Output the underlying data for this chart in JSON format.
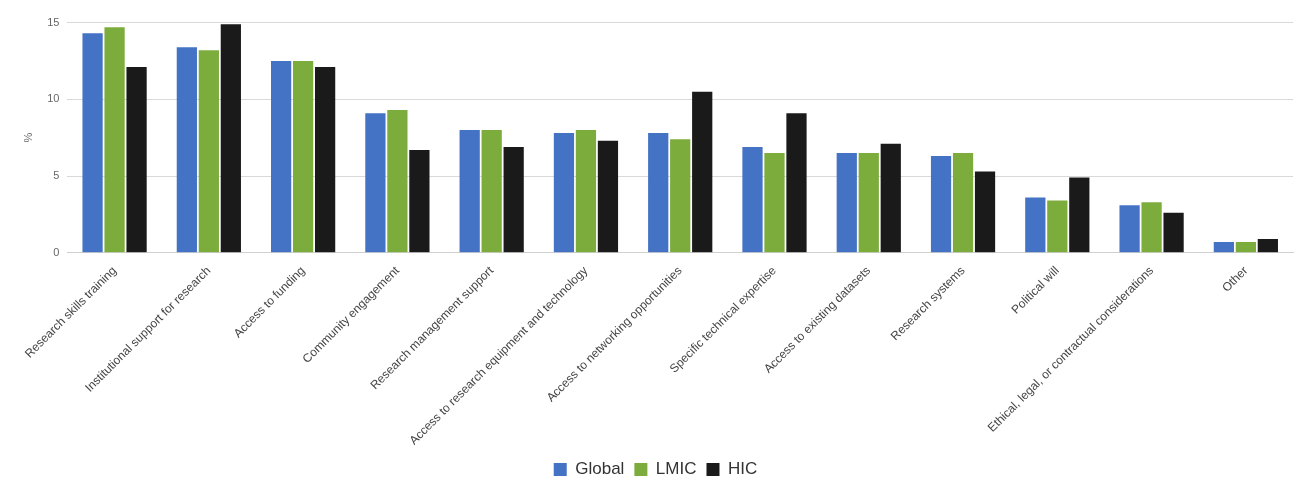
{
  "chart_data": {
    "type": "bar",
    "ylabel": "%",
    "categories": [
      "Research skills training",
      "Institutional support for research",
      "Access to funding",
      "Community engagement",
      "Research management support",
      "Access to research equipment and technology",
      "Access to networking opportunities",
      "Specific technical expertise",
      "Access to existing datasets",
      "Research systems",
      "Political will",
      "Ethical, legal, or contractual considerations",
      "Other"
    ],
    "series": [
      {
        "name": "Global",
        "color": "#4472c4",
        "values": [
          14.3,
          13.4,
          12.5,
          9.1,
          8.0,
          7.8,
          7.8,
          6.9,
          6.5,
          6.3,
          3.6,
          3.1,
          0.7
        ]
      },
      {
        "name": "LMIC",
        "color": "#7cac3c",
        "values": [
          14.7,
          13.2,
          12.5,
          9.3,
          8.0,
          8.0,
          7.4,
          6.5,
          6.5,
          6.5,
          3.4,
          3.3,
          0.7
        ]
      },
      {
        "name": "HIC",
        "color": "#1a1a1a",
        "values": [
          12.1,
          14.9,
          12.1,
          6.7,
          6.9,
          7.3,
          10.5,
          9.1,
          7.1,
          5.3,
          4.9,
          2.6,
          0.9
        ]
      }
    ],
    "ylim": [
      0,
      15
    ],
    "yticks": [
      0,
      5,
      10,
      15
    ],
    "grid": "y",
    "legend": "bottom"
  }
}
